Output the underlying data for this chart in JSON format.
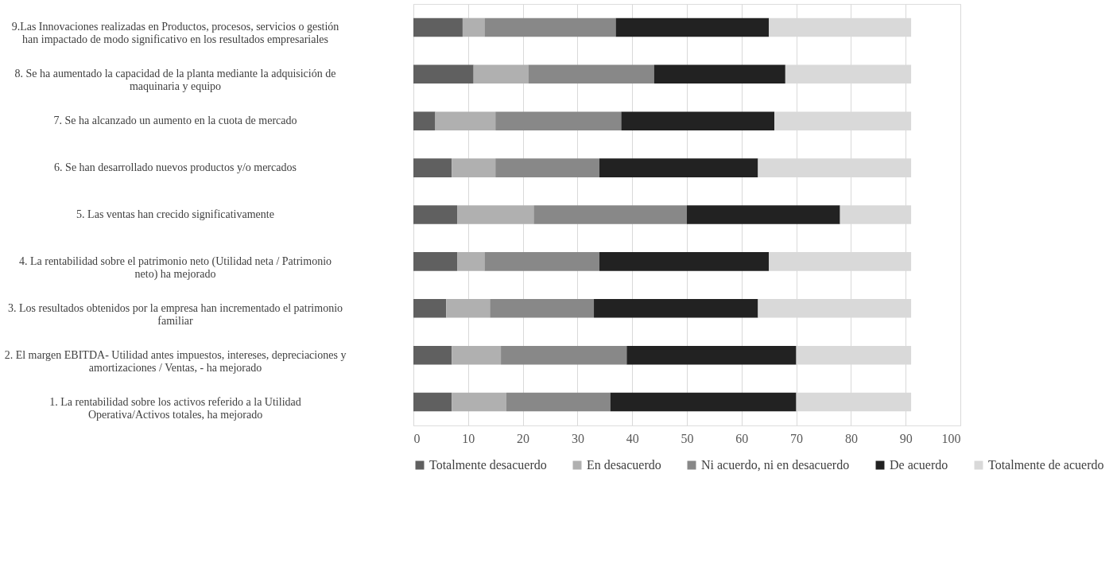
{
  "chart_data": {
    "type": "bar",
    "orientation": "horizontal",
    "stacked": true,
    "categories": [
      "9.Las Innovaciones realizadas en Productos, procesos, servicios o gestión han impactado de modo significativo en los resultados empresariales",
      "8. Se ha aumentado la capacidad de la planta mediante la adquisición de maquinaria y equipo",
      "7. Se ha alcanzado un aumento en la cuota de mercado",
      "6. Se han desarrollado nuevos productos y/o mercados",
      "5. Las ventas han crecido significativamente",
      "4. La rentabilidad sobre el patrimonio neto (Utilidad neta / Patrimonio neto) ha mejorado",
      "3. Los resultados obtenidos por la empresa han incrementado el patrimonio familiar",
      "2. El margen EBITDA- Utilidad antes impuestos, intereses, depreciaciones y amortizaciones / Ventas, - ha mejorado",
      "1. La rentabilidad sobre los activos referido a la Utilidad Operativa/Activos totales, ha mejorado"
    ],
    "series": [
      {
        "name": "Totalmente desacuerdo",
        "color": "#606060",
        "values": [
          9,
          11,
          4,
          7,
          8,
          8,
          6,
          7,
          7
        ]
      },
      {
        "name": "En desacuerdo",
        "color": "#b0b0b0",
        "values": [
          4,
          10,
          11,
          8,
          14,
          5,
          8,
          9,
          10
        ]
      },
      {
        "name": "Ni acuerdo, ni en desacuerdo",
        "color": "#888888",
        "values": [
          24,
          23,
          23,
          19,
          28,
          21,
          19,
          23,
          19
        ]
      },
      {
        "name": "De acuerdo",
        "color": "#222222",
        "values": [
          28,
          24,
          28,
          29,
          28,
          31,
          30,
          31,
          34
        ]
      },
      {
        "name": "Totalmente de acuerdo",
        "color": "#d9d9d9",
        "values": [
          26,
          23,
          25,
          28,
          13,
          26,
          28,
          21,
          21
        ]
      }
    ],
    "xlim": [
      0,
      100
    ],
    "xticks": [
      0,
      10,
      20,
      30,
      40,
      50,
      60,
      70,
      80,
      90,
      100
    ],
    "grid": "x",
    "legend": "bottom"
  }
}
